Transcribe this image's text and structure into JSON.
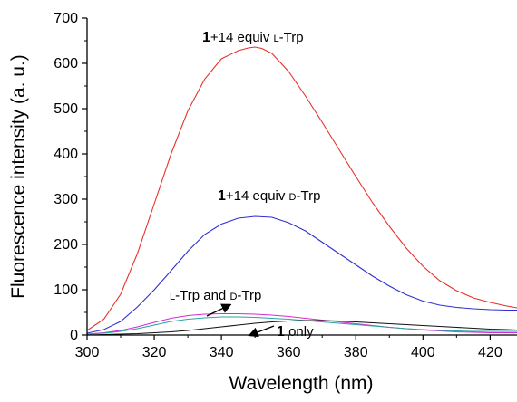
{
  "chart_data": {
    "type": "line",
    "title": "",
    "xlabel": "Wavelength (nm)",
    "ylabel": "Fluorescence intensity (a. u.)",
    "xlim": [
      300,
      428
    ],
    "ylim": [
      0,
      700
    ],
    "xticks": [
      300,
      320,
      340,
      360,
      380,
      400,
      420
    ],
    "yticks": [
      0,
      100,
      200,
      300,
      400,
      500,
      600,
      700
    ],
    "grid": false,
    "legend": "none",
    "series": [
      {
        "color": "#e8312a",
        "x": [
          300,
          305,
          310,
          315,
          320,
          325,
          330,
          335,
          340,
          345,
          348,
          350,
          352,
          355,
          360,
          365,
          370,
          375,
          380,
          385,
          390,
          395,
          400,
          405,
          410,
          415,
          420,
          425,
          428
        ],
        "y": [
          10,
          35,
          90,
          180,
          290,
          400,
          495,
          565,
          610,
          628,
          634,
          636,
          633,
          622,
          582,
          528,
          470,
          410,
          350,
          292,
          240,
          192,
          152,
          120,
          98,
          82,
          72,
          64,
          60
        ]
      },
      {
        "color": "#2f2fd0",
        "x": [
          300,
          305,
          310,
          315,
          320,
          325,
          330,
          335,
          340,
          345,
          350,
          355,
          360,
          365,
          370,
          375,
          380,
          385,
          390,
          395,
          400,
          405,
          410,
          415,
          420,
          425,
          428
        ],
        "y": [
          4,
          12,
          30,
          62,
          100,
          142,
          185,
          222,
          245,
          258,
          262,
          260,
          248,
          230,
          205,
          180,
          155,
          130,
          108,
          89,
          75,
          66,
          61,
          58,
          56,
          55,
          55
        ]
      },
      {
        "color": "#d62ad6",
        "x": [
          300,
          305,
          310,
          315,
          320,
          325,
          330,
          335,
          340,
          345,
          350,
          355,
          360,
          365,
          370,
          375,
          380,
          385,
          390,
          395,
          400,
          405,
          410,
          415,
          420,
          425,
          428
        ],
        "y": [
          2,
          5,
          10,
          18,
          28,
          37,
          43,
          46,
          47,
          47,
          46,
          44,
          41,
          37,
          33,
          29,
          25,
          21,
          17,
          14,
          11,
          9,
          7,
          6,
          5,
          5,
          5
        ]
      },
      {
        "color": "#2aa3a3",
        "x": [
          300,
          305,
          310,
          315,
          320,
          325,
          330,
          335,
          340,
          345,
          350,
          355,
          360,
          365,
          370,
          375,
          380,
          385,
          390,
          395,
          400,
          405,
          410,
          415,
          420,
          425,
          428
        ],
        "y": [
          2,
          4,
          8,
          14,
          22,
          30,
          35,
          38,
          40,
          40,
          39,
          37,
          35,
          32,
          29,
          26,
          23,
          20,
          17,
          14,
          12,
          10,
          9,
          8,
          8,
          8,
          8
        ]
      },
      {
        "color": "#111111",
        "x": [
          300,
          305,
          310,
          315,
          320,
          325,
          330,
          335,
          340,
          345,
          350,
          355,
          360,
          365,
          370,
          375,
          380,
          385,
          390,
          395,
          400,
          405,
          410,
          415,
          420,
          425,
          428
        ],
        "y": [
          0,
          1,
          2,
          3,
          5,
          7,
          10,
          14,
          18,
          22,
          26,
          29,
          31,
          32,
          32,
          31,
          29,
          27,
          25,
          23,
          21,
          19,
          17,
          15,
          13,
          12,
          11
        ]
      }
    ],
    "annotations": {
      "red": {
        "bold": "1",
        "text": "+14 equiv ",
        "prefix_sc": "L",
        "suffix": "-Trp"
      },
      "blue": {
        "bold": "1",
        "text": "+14 equiv ",
        "prefix_sc": "D",
        "suffix": "-Trp"
      },
      "pair": {
        "sc1": "L",
        "mid": "-Trp and ",
        "sc2": "D",
        "end": "-Trp"
      },
      "only": {
        "bold": "1",
        "text": " only"
      }
    }
  }
}
